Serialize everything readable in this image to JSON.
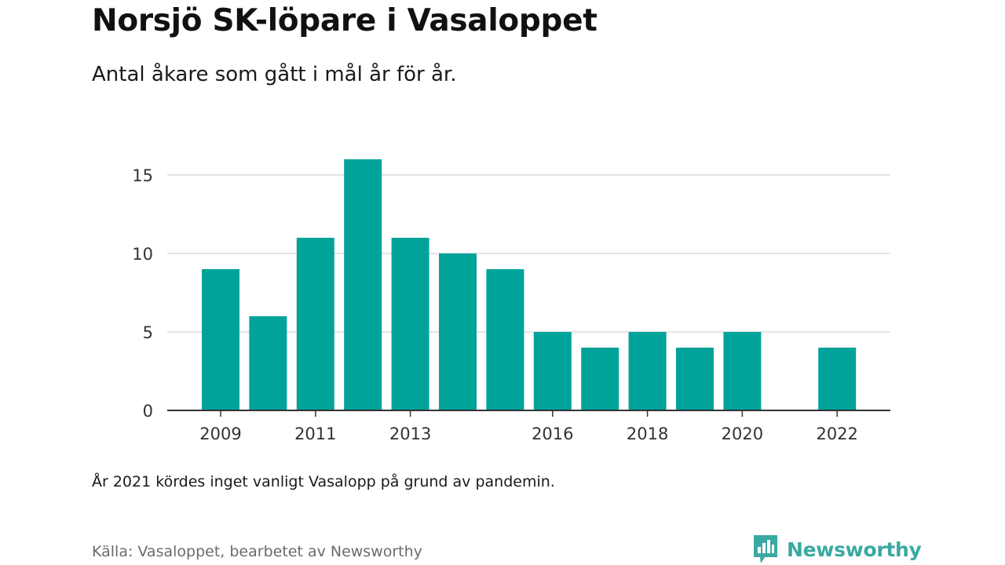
{
  "header": {
    "title": "Norsjö SK-löpare i Vasaloppet",
    "subtitle": "Antal åkare som gått i mål år för år."
  },
  "footer": {
    "note": "År 2021 kördes inget vanligt Vasalopp på grund av pandemin.",
    "source": "Källa: Vasaloppet, bearbetet av Newsworthy",
    "brand": "Newsworthy"
  },
  "colors": {
    "bar": "#00a39a",
    "grid": "#dcdcdc",
    "axis": "#333333",
    "brand": "#3aa9a1"
  },
  "chart_data": {
    "type": "bar",
    "title": "Norsjö SK-löpare i Vasaloppet",
    "subtitle": "Antal åkare som gått i mål år för år.",
    "x": [
      2009,
      2010,
      2011,
      2012,
      2013,
      2014,
      2015,
      2016,
      2017,
      2018,
      2019,
      2020,
      2021,
      2022
    ],
    "values": [
      9,
      6,
      11,
      16,
      11,
      10,
      9,
      5,
      4,
      5,
      4,
      5,
      null,
      4
    ],
    "x_tick_labels": [
      "2009",
      "2011",
      "2013",
      "2016",
      "2018",
      "2020",
      "2022"
    ],
    "y_ticks": [
      0,
      5,
      10,
      15
    ],
    "ylim": [
      0,
      16
    ],
    "xlabel": "",
    "ylabel": "",
    "grid": true,
    "legend": "none"
  }
}
